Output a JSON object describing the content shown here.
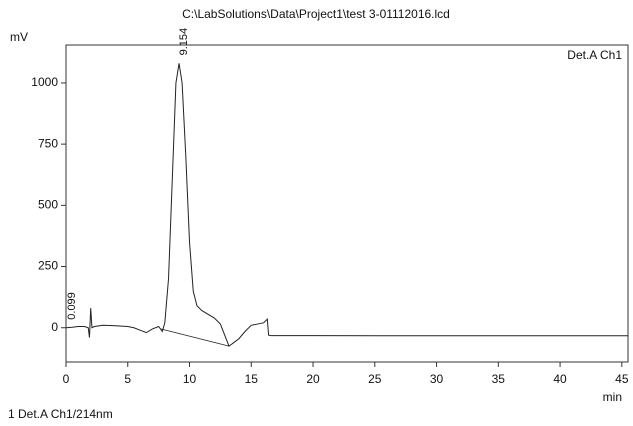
{
  "chart_data": {
    "type": "line",
    "title": "C:\\LabSolutions\\Data\\Project1\\test 3-01112016.lcd",
    "ylabel": "mV",
    "xlabel": "min",
    "channel_label": "Det.A Ch1",
    "series": [
      {
        "name": "1 Det.A Ch1/214nm",
        "color": "#222222",
        "x": [
          0,
          0.5,
          1,
          1.5,
          1.8,
          1.9,
          2.0,
          2.1,
          2.3,
          3,
          4,
          5,
          5.5,
          6,
          6.5,
          7,
          7.5,
          7.8,
          8.0,
          8.3,
          8.6,
          8.9,
          9.154,
          9.4,
          9.7,
          10,
          10.3,
          10.6,
          11,
          11.5,
          12,
          12.5,
          13,
          13.2,
          13.6,
          14,
          14.5,
          15,
          15.5,
          16,
          16.3,
          16.4,
          16.6,
          20,
          30,
          45.5
        ],
        "values": [
          0,
          2,
          5,
          5,
          0,
          -40,
          80,
          0,
          5,
          10,
          8,
          5,
          0,
          -10,
          -20,
          -5,
          5,
          -15,
          20,
          200,
          600,
          1000,
          1080,
          1000,
          700,
          350,
          150,
          90,
          70,
          55,
          40,
          15,
          -50,
          -75,
          -60,
          -45,
          -15,
          10,
          15,
          20,
          35,
          -30,
          -32,
          -32,
          -33,
          -33
        ]
      }
    ],
    "baseline": {
      "x": [
        7.7,
        13.2
      ],
      "values": [
        -5,
        -75
      ]
    },
    "peak_labels": [
      0.099,
      9.154
    ],
    "xlim": [
      0,
      45.5
    ],
    "ylim": [
      -140,
      1155
    ],
    "xticks": [
      0,
      5,
      10,
      15,
      20,
      25,
      30,
      35,
      40,
      45
    ],
    "yticks": [
      0,
      250,
      500,
      750,
      1000
    ]
  }
}
